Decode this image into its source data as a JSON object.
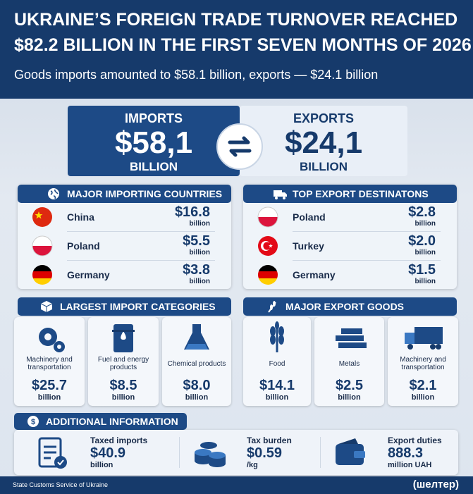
{
  "header": {
    "title_line1": "UKRAINE’S FOREIGN TRADE TURNOVER REACHED",
    "title_line2": "$82.2 BILLION IN THE FIRST SEVEN MONTHS OF 2026",
    "subtitle": "Goods imports amounted to $58.1 billion, exports — $24.1 billion"
  },
  "totals": {
    "imports": {
      "label": "IMPORTS",
      "value": "$58,1",
      "unit": "BILLION"
    },
    "exports": {
      "label": "EXPORTS",
      "value": "$24,1",
      "unit": "BILLION"
    }
  },
  "importing": {
    "title": "MAJOR IMPORTING COUNTRIES",
    "rows": [
      {
        "country": "China",
        "value": "$16.8",
        "unit": "billion"
      },
      {
        "country": "Poland",
        "value": "$5.5",
        "unit": "billion"
      },
      {
        "country": "Germany",
        "value": "$3.8",
        "unit": "billion"
      }
    ]
  },
  "export_destinations": {
    "title": "TOP EXPORT DESTINATONS",
    "rows": [
      {
        "country": "Poland",
        "value": "$2.8",
        "unit": "billion"
      },
      {
        "country": "Turkey",
        "value": "$2.0",
        "unit": "billion"
      },
      {
        "country": "Germany",
        "value": "$1.5",
        "unit": "billion"
      }
    ]
  },
  "import_categories": {
    "title": "LARGEST IMPORT CATEGORIES",
    "items": [
      {
        "label": "Machinery and transportation",
        "value": "$25.7",
        "unit": "billion"
      },
      {
        "label": "Fuel and energy products",
        "value": "$8.5",
        "unit": "billion"
      },
      {
        "label": "Chemical products",
        "value": "$8.0",
        "unit": "billion"
      }
    ]
  },
  "export_goods": {
    "title": "MAJOR EXPORT GOODS",
    "items": [
      {
        "label": "Food",
        "value": "$14.1",
        "unit": "billion"
      },
      {
        "label": "Metals",
        "value": "$2.5",
        "unit": "billion"
      },
      {
        "label": "Machinery and transportation",
        "value": "$2.1",
        "unit": "billion"
      }
    ]
  },
  "additional": {
    "title": "ADDITIONAL INFORMATION",
    "items": [
      {
        "label": "Taxed imports",
        "value": "$40.9",
        "unit": "billion"
      },
      {
        "label": "Tax burden",
        "value": "$0.59",
        "unit": "/kg"
      },
      {
        "label": "Export duties",
        "value": "888.3",
        "unit": "million UAH"
      }
    ]
  },
  "footer": {
    "source": "State Customs Service of Ukraine",
    "brand": "(шелтер)"
  }
}
